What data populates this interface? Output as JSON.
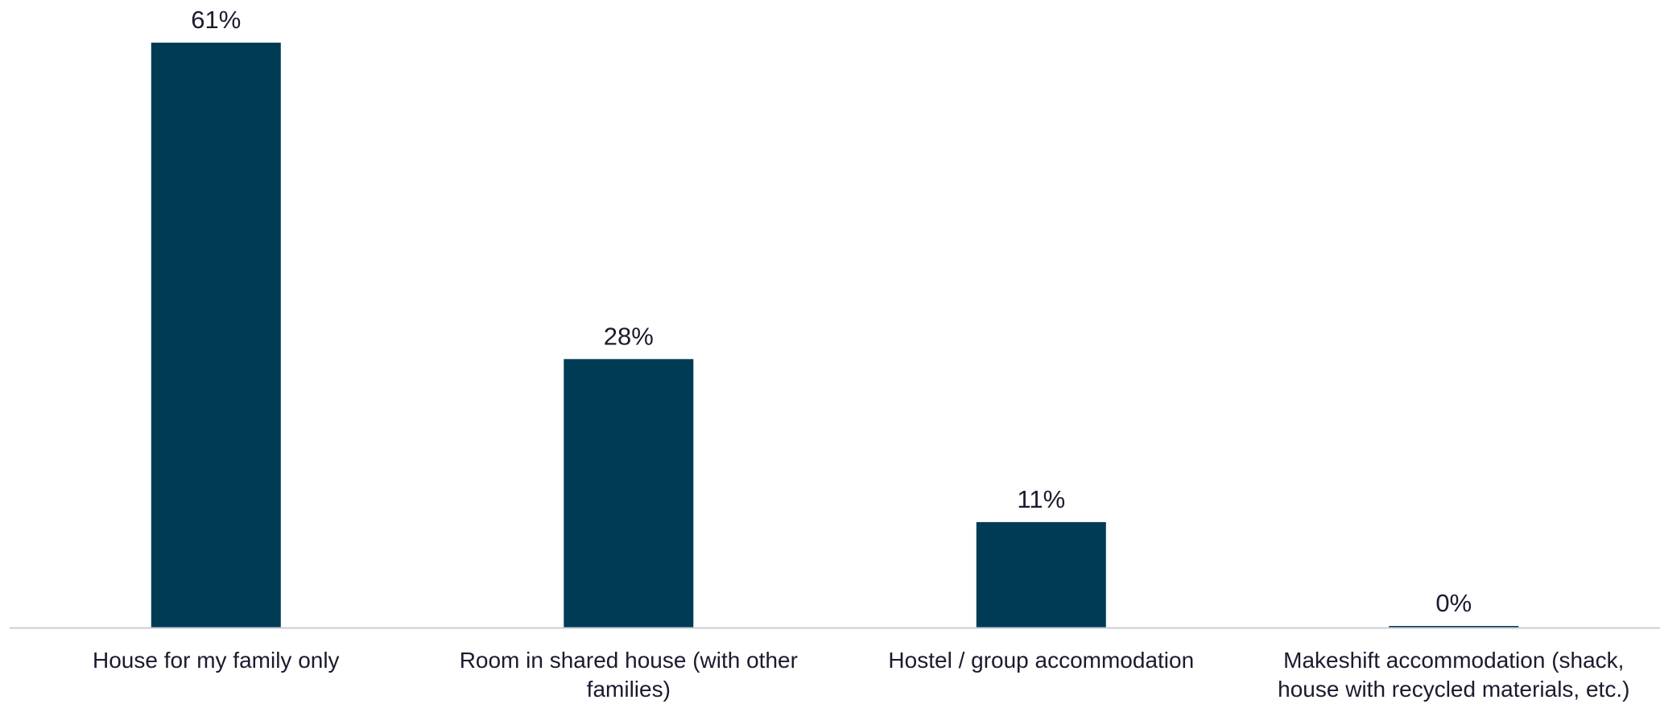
{
  "chart_data": {
    "type": "bar",
    "categories": [
      [
        "House for my family only"
      ],
      [
        "Room in shared house (with other",
        "families)"
      ],
      [
        "Hostel / group accommodation"
      ],
      [
        "Makeshift accommodation (shack,",
        "house with recycled materials, etc.)"
      ]
    ],
    "values": [
      61,
      28,
      11,
      0
    ],
    "data_labels": [
      "61%",
      "28%",
      "11%",
      "0%"
    ],
    "ylim": [
      0,
      61
    ],
    "grid": false,
    "legend": "none",
    "colors": {
      "bar": "#003b55",
      "axis": "#c8ccd2",
      "text": "#1b1b2f"
    }
  }
}
